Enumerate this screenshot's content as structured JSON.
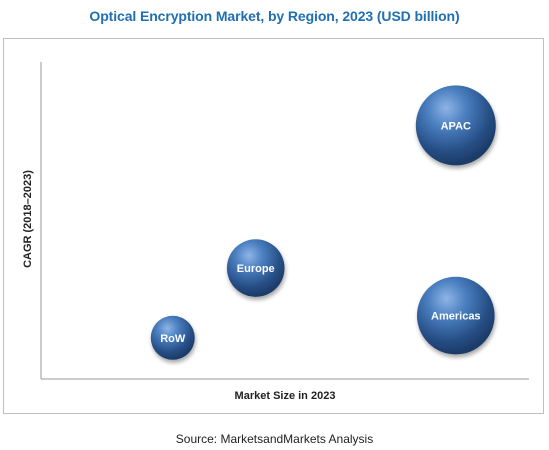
{
  "chart_data": {
    "type": "bubble",
    "title": "Optical Encryption Market, by Region, 2023 (USD billion)",
    "xlabel": "Market Size in 2023",
    "ylabel": "CAGR (2018–2023)",
    "source": "Source: MarketsandMarkets Analysis",
    "x_ticks_shown": false,
    "y_ticks_shown": false,
    "grid": false,
    "legend": "none",
    "bubble_color": "#3f6fae",
    "series": [
      {
        "label": "APAC",
        "x": 0.85,
        "y": 0.8,
        "size": 1.0
      },
      {
        "label": "Europe",
        "x": 0.44,
        "y": 0.35,
        "size": 0.72
      },
      {
        "label": "RoW",
        "x": 0.27,
        "y": 0.13,
        "size": 0.55
      },
      {
        "label": "Americas",
        "x": 0.85,
        "y": 0.2,
        "size": 0.97
      }
    ]
  }
}
